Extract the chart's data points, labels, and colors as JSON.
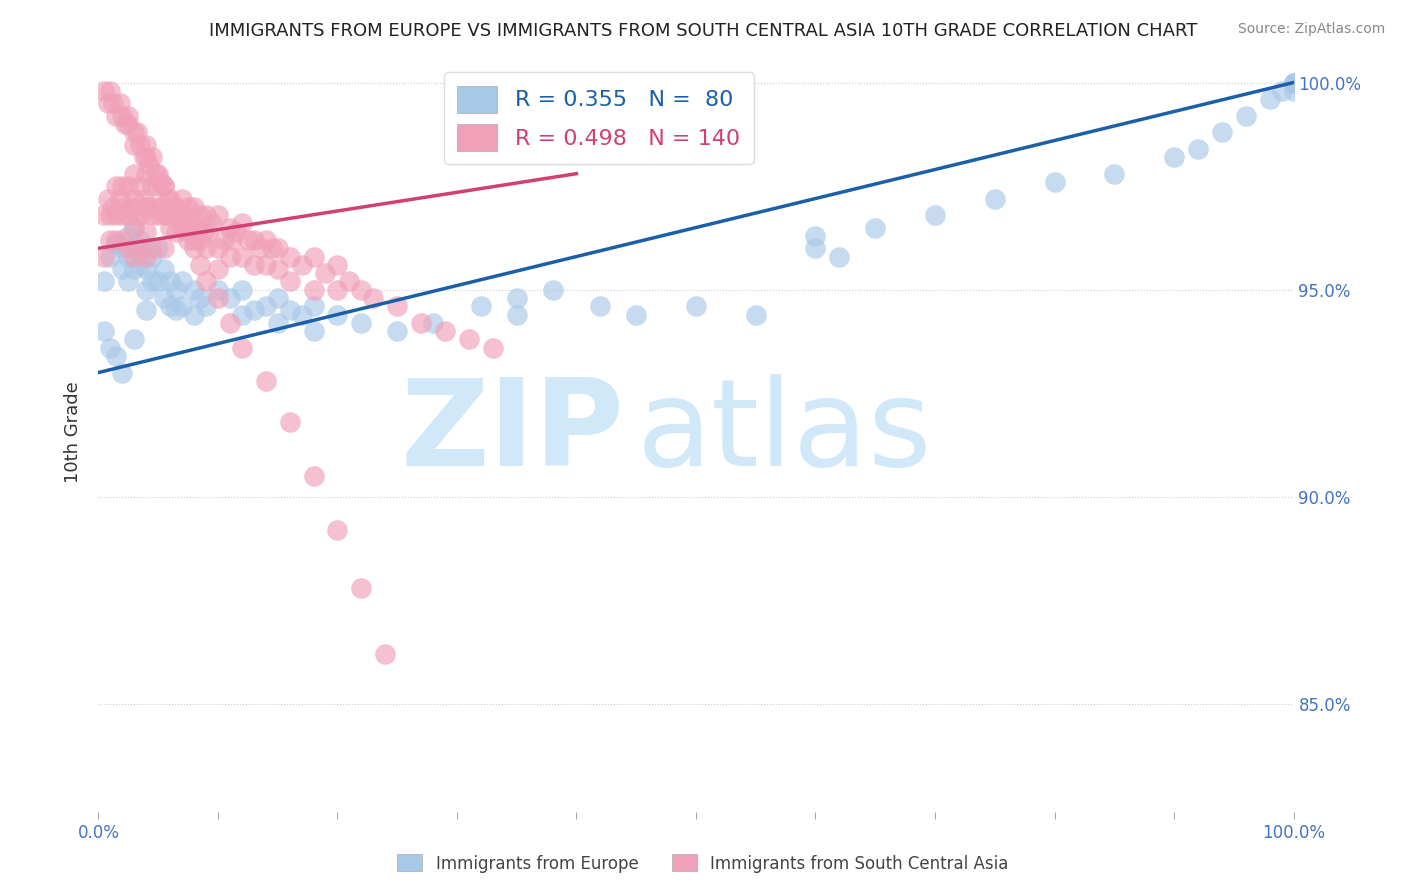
{
  "title": "IMMIGRANTS FROM EUROPE VS IMMIGRANTS FROM SOUTH CENTRAL ASIA 10TH GRADE CORRELATION CHART",
  "source": "Source: ZipAtlas.com",
  "ylabel": "10th Grade",
  "xmin": 0.0,
  "xmax": 1.0,
  "ymin": 0.824,
  "ymax": 1.007,
  "yticks": [
    0.85,
    0.9,
    0.95,
    1.0
  ],
  "ytick_labels": [
    "85.0%",
    "90.0%",
    "95.0%",
    "100.0%"
  ],
  "xticks": [
    0.0,
    0.1,
    0.2,
    0.3,
    0.4,
    0.5,
    0.6,
    0.7,
    0.8,
    0.9,
    1.0
  ],
  "blue_R": 0.355,
  "blue_N": 80,
  "pink_R": 0.498,
  "pink_N": 140,
  "blue_color": "#a8c8e8",
  "pink_color": "#f0a0b8",
  "blue_line_color": "#1a5fa8",
  "pink_line_color": "#d04070",
  "legend_blue_label": "Immigrants from Europe",
  "legend_pink_label": "Immigrants from South Central Asia",
  "watermark_zip": "ZIP",
  "watermark_atlas": "atlas",
  "watermark_color": "#d0e8f8",
  "blue_x": [
    0.005,
    0.01,
    0.015,
    0.02,
    0.02,
    0.025,
    0.025,
    0.025,
    0.03,
    0.03,
    0.03,
    0.035,
    0.035,
    0.04,
    0.04,
    0.04,
    0.04,
    0.045,
    0.045,
    0.05,
    0.05,
    0.055,
    0.055,
    0.06,
    0.06,
    0.065,
    0.065,
    0.07,
    0.07,
    0.08,
    0.08,
    0.085,
    0.09,
    0.1,
    0.11,
    0.12,
    0.13,
    0.14,
    0.15,
    0.16,
    0.17,
    0.18,
    0.2,
    0.22,
    0.25,
    0.28,
    0.32,
    0.35,
    0.38,
    0.42,
    0.45,
    0.5,
    0.55,
    0.6,
    0.62,
    0.65,
    0.7,
    0.75,
    0.8,
    0.85,
    0.9,
    0.92,
    0.94,
    0.96,
    0.98,
    0.99,
    1.0,
    1.0,
    1.0,
    1.0,
    0.005,
    0.01,
    0.015,
    0.02,
    0.03,
    0.12,
    0.15,
    0.18,
    0.35,
    0.6
  ],
  "blue_y": [
    0.952,
    0.958,
    0.961,
    0.955,
    0.96,
    0.963,
    0.958,
    0.952,
    0.965,
    0.96,
    0.955,
    0.962,
    0.956,
    0.96,
    0.955,
    0.95,
    0.945,
    0.958,
    0.952,
    0.96,
    0.952,
    0.955,
    0.948,
    0.952,
    0.946,
    0.95,
    0.945,
    0.952,
    0.946,
    0.95,
    0.944,
    0.948,
    0.946,
    0.95,
    0.948,
    0.95,
    0.945,
    0.946,
    0.948,
    0.945,
    0.944,
    0.946,
    0.944,
    0.942,
    0.94,
    0.942,
    0.946,
    0.944,
    0.95,
    0.946,
    0.944,
    0.946,
    0.944,
    0.96,
    0.958,
    0.965,
    0.968,
    0.972,
    0.976,
    0.978,
    0.982,
    0.984,
    0.988,
    0.992,
    0.996,
    0.998,
    0.998,
    1.0,
    1.0,
    1.0,
    0.94,
    0.936,
    0.934,
    0.93,
    0.938,
    0.944,
    0.942,
    0.94,
    0.948,
    0.963
  ],
  "pink_x": [
    0.005,
    0.005,
    0.008,
    0.01,
    0.01,
    0.012,
    0.015,
    0.015,
    0.015,
    0.018,
    0.02,
    0.02,
    0.02,
    0.022,
    0.025,
    0.025,
    0.025,
    0.028,
    0.03,
    0.03,
    0.03,
    0.03,
    0.032,
    0.035,
    0.035,
    0.035,
    0.038,
    0.04,
    0.04,
    0.04,
    0.04,
    0.042,
    0.045,
    0.045,
    0.045,
    0.048,
    0.05,
    0.05,
    0.052,
    0.055,
    0.055,
    0.055,
    0.058,
    0.06,
    0.06,
    0.062,
    0.065,
    0.065,
    0.068,
    0.07,
    0.07,
    0.072,
    0.075,
    0.075,
    0.078,
    0.08,
    0.08,
    0.082,
    0.085,
    0.085,
    0.088,
    0.09,
    0.09,
    0.092,
    0.095,
    0.1,
    0.1,
    0.1,
    0.105,
    0.11,
    0.11,
    0.112,
    0.115,
    0.12,
    0.12,
    0.125,
    0.13,
    0.13,
    0.135,
    0.14,
    0.14,
    0.145,
    0.15,
    0.15,
    0.16,
    0.16,
    0.17,
    0.18,
    0.18,
    0.19,
    0.2,
    0.2,
    0.21,
    0.22,
    0.23,
    0.25,
    0.27,
    0.29,
    0.31,
    0.33,
    0.005,
    0.008,
    0.01,
    0.012,
    0.015,
    0.018,
    0.02,
    0.022,
    0.025,
    0.025,
    0.03,
    0.03,
    0.032,
    0.035,
    0.038,
    0.04,
    0.04,
    0.042,
    0.045,
    0.048,
    0.05,
    0.052,
    0.055,
    0.058,
    0.06,
    0.065,
    0.07,
    0.075,
    0.08,
    0.085,
    0.09,
    0.1,
    0.11,
    0.12,
    0.14,
    0.16,
    0.18,
    0.2,
    0.22,
    0.24
  ],
  "pink_y": [
    0.968,
    0.958,
    0.972,
    0.968,
    0.962,
    0.97,
    0.975,
    0.968,
    0.962,
    0.972,
    0.975,
    0.968,
    0.962,
    0.97,
    0.975,
    0.968,
    0.96,
    0.97,
    0.978,
    0.972,
    0.965,
    0.958,
    0.968,
    0.975,
    0.968,
    0.96,
    0.972,
    0.978,
    0.97,
    0.964,
    0.958,
    0.97,
    0.975,
    0.968,
    0.96,
    0.97,
    0.975,
    0.968,
    0.97,
    0.975,
    0.968,
    0.96,
    0.968,
    0.972,
    0.965,
    0.968,
    0.97,
    0.964,
    0.968,
    0.972,
    0.965,
    0.968,
    0.97,
    0.964,
    0.966,
    0.97,
    0.962,
    0.965,
    0.968,
    0.962,
    0.964,
    0.968,
    0.96,
    0.964,
    0.966,
    0.968,
    0.96,
    0.955,
    0.962,
    0.965,
    0.958,
    0.962,
    0.964,
    0.966,
    0.958,
    0.962,
    0.962,
    0.956,
    0.96,
    0.962,
    0.956,
    0.96,
    0.96,
    0.955,
    0.958,
    0.952,
    0.956,
    0.958,
    0.95,
    0.954,
    0.956,
    0.95,
    0.952,
    0.95,
    0.948,
    0.946,
    0.942,
    0.94,
    0.938,
    0.936,
    0.998,
    0.995,
    0.998,
    0.995,
    0.992,
    0.995,
    0.992,
    0.99,
    0.992,
    0.99,
    0.988,
    0.985,
    0.988,
    0.985,
    0.982,
    0.985,
    0.982,
    0.98,
    0.982,
    0.978,
    0.978,
    0.976,
    0.975,
    0.972,
    0.97,
    0.968,
    0.965,
    0.962,
    0.96,
    0.956,
    0.952,
    0.948,
    0.942,
    0.936,
    0.928,
    0.918,
    0.905,
    0.892,
    0.878,
    0.862
  ],
  "blue_trend_x0": 0.0,
  "blue_trend_y0": 0.93,
  "blue_trend_x1": 1.0,
  "blue_trend_y1": 1.0,
  "pink_trend_x0": 0.0,
  "pink_trend_y0": 0.96,
  "pink_trend_x1": 0.4,
  "pink_trend_y1": 0.978
}
